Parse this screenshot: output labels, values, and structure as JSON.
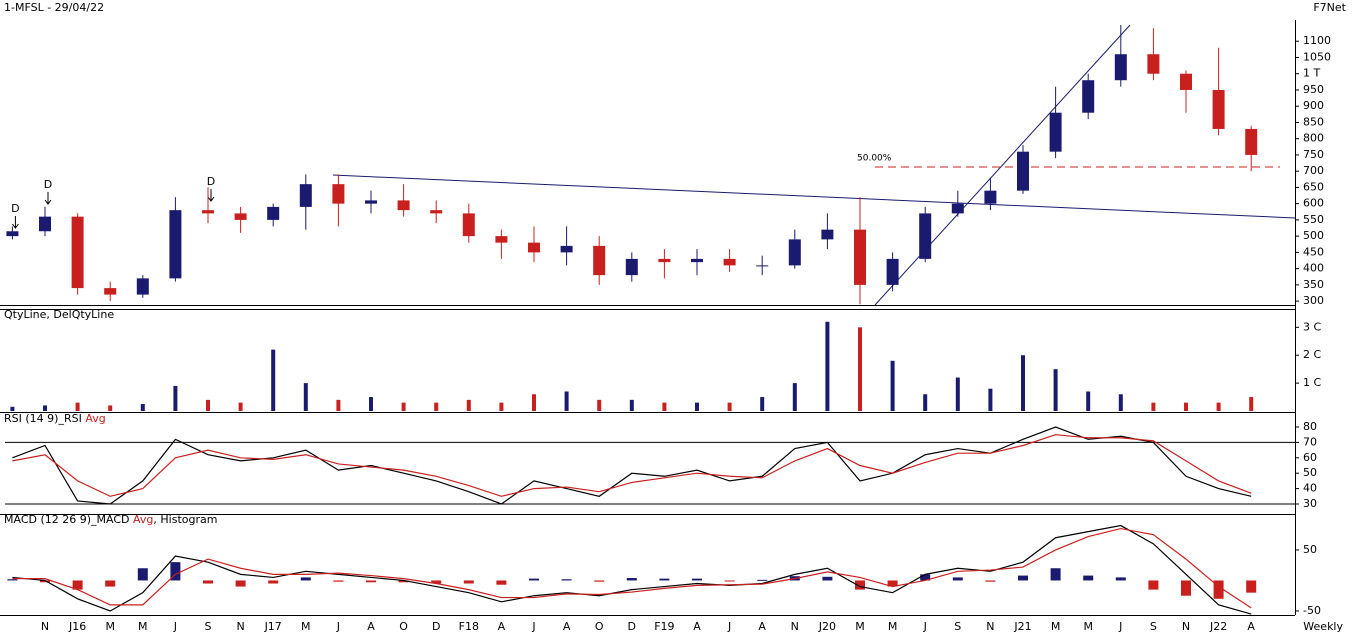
{
  "header": {
    "title": "1-MFSL - 29/04/22",
    "source": "F7Net",
    "timeframe": "Weekly",
    "markers": [
      "D",
      "D",
      "D"
    ],
    "fib_label": "50.00%"
  },
  "chart_data": [
    {
      "type": "candlestick",
      "categories": [
        null,
        "N",
        "J16",
        "M",
        "M",
        "J",
        "S",
        "N",
        "J17",
        "M",
        "J",
        "A",
        "O",
        "D",
        "F18",
        "A",
        "J",
        "A",
        "O",
        "D",
        "F19",
        "A",
        "J",
        "A",
        "N",
        "J20",
        "M",
        "M",
        "J",
        "S",
        "N",
        "J21",
        "M",
        "M",
        "J",
        "S",
        "N",
        "J22",
        "A"
      ],
      "open": [
        500,
        515,
        560,
        340,
        320,
        370,
        580,
        570,
        550,
        590,
        660,
        600,
        610,
        580,
        570,
        500,
        480,
        450,
        470,
        380,
        430,
        420,
        430,
        410,
        410,
        490,
        520,
        350,
        430,
        570,
        600,
        640,
        760,
        880,
        980,
        1060,
        1000,
        950,
        830
      ],
      "high": [
        530,
        590,
        570,
        360,
        380,
        620,
        650,
        590,
        600,
        690,
        690,
        640,
        660,
        610,
        600,
        520,
        530,
        530,
        500,
        450,
        460,
        460,
        460,
        440,
        520,
        570,
        620,
        450,
        590,
        640,
        680,
        780,
        960,
        1000,
        1150,
        1140,
        1010,
        1080,
        840
      ],
      "low": [
        490,
        500,
        320,
        300,
        310,
        360,
        540,
        510,
        530,
        520,
        530,
        570,
        560,
        540,
        480,
        430,
        420,
        410,
        350,
        360,
        370,
        380,
        390,
        380,
        400,
        460,
        290,
        330,
        420,
        560,
        580,
        630,
        740,
        860,
        960,
        980,
        880,
        810,
        700
      ],
      "close": [
        515,
        560,
        340,
        320,
        370,
        580,
        570,
        550,
        590,
        660,
        600,
        610,
        580,
        570,
        500,
        480,
        450,
        470,
        380,
        430,
        420,
        430,
        410,
        410,
        490,
        520,
        350,
        430,
        570,
        600,
        640,
        760,
        880,
        980,
        1060,
        1000,
        950,
        830,
        750
      ],
      "up_color": "#1a1a6e",
      "down_color": "#c8201e",
      "ylim": [
        288,
        1150
      ],
      "yticks": [
        300,
        350,
        400,
        450,
        500,
        550,
        600,
        650,
        700,
        750,
        800,
        850,
        900,
        950,
        {
          "value": 1000,
          "label": "1 T"
        },
        1050,
        1100
      ]
    },
    {
      "type": "bar",
      "title": "QtyLine, DelQtyLine",
      "values": [
        0.15,
        0.2,
        0.3,
        0.2,
        0.25,
        0.9,
        0.4,
        0.3,
        2.2,
        1.0,
        0.4,
        0.5,
        0.3,
        0.3,
        0.4,
        0.3,
        0.6,
        0.7,
        0.4,
        0.4,
        0.3,
        0.3,
        0.3,
        0.5,
        1.0,
        3.2,
        3.0,
        1.8,
        0.6,
        1.2,
        0.8,
        2.0,
        1.5,
        0.7,
        0.6,
        0.3,
        0.3,
        0.3,
        0.5
      ],
      "ylim": [
        0,
        3.55
      ],
      "yticks": [
        {
          "value": 1,
          "label": "1 C"
        },
        {
          "value": 2,
          "label": "2 C"
        },
        {
          "value": 3,
          "label": "3 C"
        }
      ]
    },
    {
      "type": "line",
      "title_parts": [
        "RSI (14 9)_RSI",
        "Avg"
      ],
      "series": [
        {
          "name": "RSI",
          "color": "#000000",
          "values": [
            60,
            68,
            32,
            30,
            45,
            72,
            62,
            58,
            60,
            65,
            52,
            55,
            50,
            45,
            38,
            30,
            45,
            40,
            35,
            50,
            48,
            52,
            45,
            48,
            66,
            70,
            45,
            50,
            62,
            66,
            63,
            72,
            80,
            72,
            74,
            70,
            48,
            40,
            35
          ]
        },
        {
          "name": "Avg",
          "color": "#c8201e",
          "values": [
            58,
            62,
            45,
            35,
            40,
            60,
            65,
            60,
            59,
            62,
            56,
            54,
            52,
            48,
            42,
            35,
            40,
            41,
            38,
            44,
            47,
            50,
            48,
            47,
            58,
            66,
            55,
            50,
            57,
            63,
            63,
            68,
            75,
            73,
            73,
            71,
            58,
            45,
            37
          ]
        }
      ],
      "levels": [
        70,
        30
      ],
      "ylim": [
        24.8,
        87.8
      ],
      "yticks": [
        30,
        40,
        50,
        60,
        70,
        80
      ]
    },
    {
      "type": "line",
      "title_parts": [
        "MACD (12 26 9)_MACD",
        "Avg",
        ", Histogram"
      ],
      "series": [
        {
          "name": "MACD",
          "color": "#000000",
          "values": [
            5,
            0,
            -30,
            -50,
            -20,
            40,
            30,
            10,
            5,
            15,
            10,
            5,
            0,
            -10,
            -20,
            -35,
            -25,
            -20,
            -25,
            -15,
            -10,
            -5,
            -8,
            -5,
            10,
            20,
            -10,
            -20,
            10,
            20,
            15,
            30,
            70,
            80,
            90,
            60,
            10,
            -40,
            -55
          ]
        },
        {
          "name": "Avg",
          "color": "#c8201e",
          "values": [
            3,
            3,
            -15,
            -40,
            -40,
            10,
            35,
            20,
            10,
            10,
            12,
            8,
            3,
            -5,
            -15,
            -28,
            -28,
            -22,
            -23,
            -19,
            -13,
            -8,
            -7,
            -6,
            3,
            14,
            5,
            -10,
            0,
            15,
            17,
            22,
            50,
            72,
            85,
            75,
            35,
            -10,
            -45
          ]
        }
      ],
      "histogram": [
        2,
        -3,
        -15,
        -10,
        20,
        30,
        -5,
        -10,
        -5,
        5,
        -2,
        -3,
        -3,
        -5,
        -5,
        -7,
        3,
        2,
        -2,
        4,
        3,
        3,
        -1,
        1,
        7,
        6,
        -15,
        -10,
        10,
        5,
        -2,
        8,
        20,
        8,
        5,
        -15,
        -25,
        -30,
        -20
      ],
      "up_color": "#1a1a6e",
      "down_color": "#c8201e",
      "ylim": [
        -56.6,
        104
      ],
      "yticks": [
        50,
        -50
      ]
    }
  ]
}
